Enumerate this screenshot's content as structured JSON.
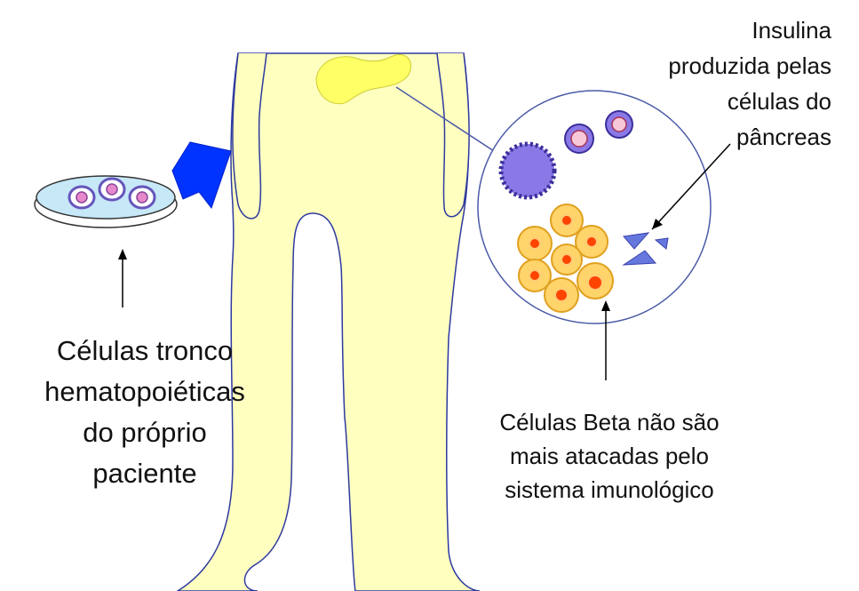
{
  "labels": {
    "stem_cells": {
      "line1": "Células tronco",
      "line2": "hematopoiéticas",
      "line3": "do próprio",
      "line4": "paciente"
    },
    "insulin": {
      "line1": "Insulina",
      "line2": "produzida pelas",
      "line3": "células do",
      "line4": "pâncreas"
    },
    "beta_cells": {
      "line1": "Células Beta não são",
      "line2": "mais atacadas pelo",
      "line3": "sistema imunológico"
    }
  },
  "colors": {
    "body_fill": "#ffffc0",
    "body_outline": "#2e3a9e",
    "pancreas": "#ffff66",
    "arrow_blue": "#0033ff",
    "dish_fill": "#c6e8f7",
    "stem_cell": "#6655bb",
    "immune_cell": "#7a63d6",
    "beta_cell_fill": "#ffd46a",
    "beta_cell_nucleus": "#ff4400",
    "insulin_fragment": "#6677dd"
  },
  "icons": {
    "petri_dish": "petri-dish-icon",
    "big_arrow": "big-arrow-icon",
    "pancreas": "pancreas-icon",
    "zoom_circle": "zoom-circle-icon"
  }
}
